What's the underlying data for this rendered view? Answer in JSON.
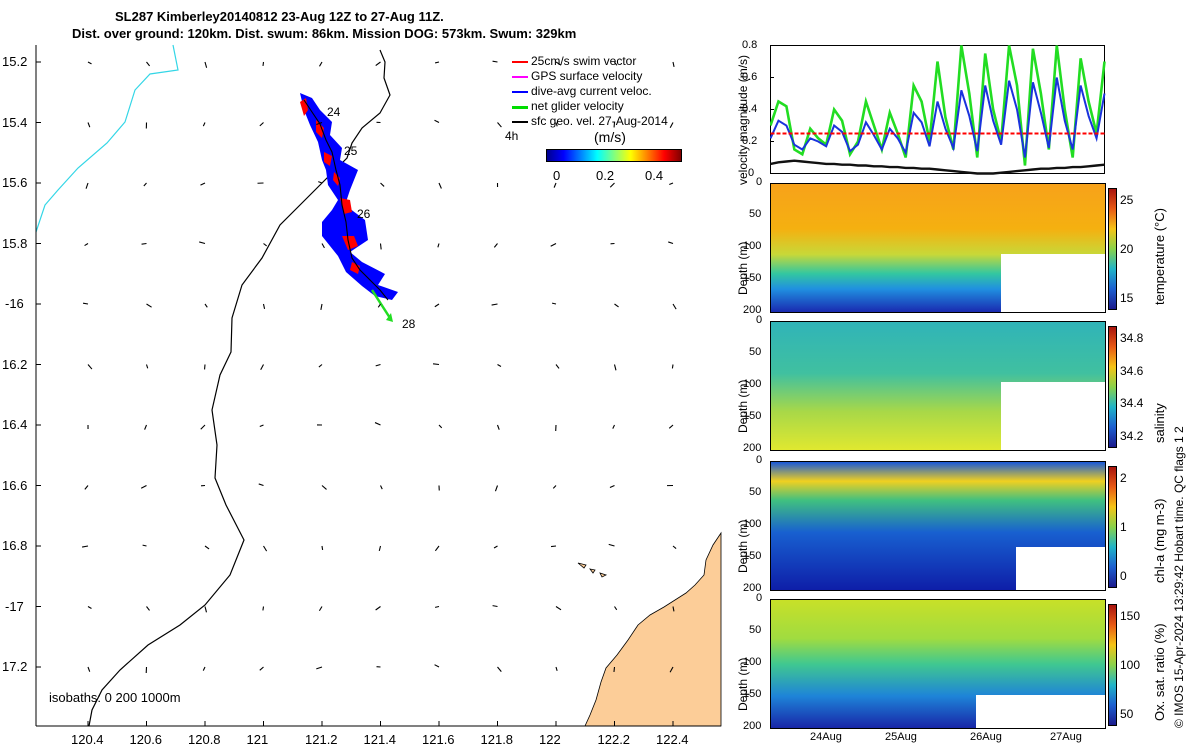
{
  "title": {
    "line1": "SL287 Kimberley20140812 23-Aug 12Z to 27-Aug 11Z.",
    "line2": "Dist. over ground: 120km. Dist. swum: 86km. Mission DOG: 573km. Swum: 329km"
  },
  "map": {
    "lat_ticks": [
      "15.2",
      "15.4",
      "15.6",
      "15.8",
      "-16",
      "16.2",
      "16.4",
      "16.6",
      "16.8",
      "-17",
      "17.2"
    ],
    "lon_ticks": [
      "120.4",
      "120.6",
      "120.8",
      "121",
      "121.2",
      "121.4",
      "121.6",
      "121.8",
      "122",
      "122.2",
      "122.4"
    ],
    "day_labels": [
      "24",
      "25",
      "26",
      "28"
    ],
    "time_label": "4h",
    "isobaths_label": "isobaths: 0   200  1000m",
    "legend": [
      {
        "label": "25cm/s swim vector",
        "color": "#ff0000"
      },
      {
        "label": "GPS surface velocity",
        "color": "#ff00ff"
      },
      {
        "label": "dive-avg current veloc.",
        "color": "#0000ff"
      },
      {
        "label": "net glider velocity",
        "color": "#00dd00"
      },
      {
        "label": "sfc geo. vel. 27-Aug-2014",
        "color": "#000000"
      }
    ],
    "colorbar": {
      "label": "(m/s)",
      "ticks": [
        "0",
        "0.2",
        "0.4"
      ]
    }
  },
  "chart_data": [
    {
      "type": "line",
      "title": "",
      "ylabel": "velocity magnitude (m/s)",
      "ylim": [
        0,
        0.8
      ],
      "yticks": [
        "0",
        "0.2",
        "0.4",
        "0.6",
        "0.8"
      ],
      "series": [
        {
          "name": "net glider velocity",
          "color": "#22dd22",
          "values": [
            0.3,
            0.45,
            0.42,
            0.15,
            0.12,
            0.28,
            0.22,
            0.18,
            0.4,
            0.33,
            0.12,
            0.2,
            0.45,
            0.3,
            0.15,
            0.38,
            0.25,
            0.1,
            0.55,
            0.45,
            0.2,
            0.7,
            0.35,
            0.15,
            0.8,
            0.5,
            0.1,
            0.75,
            0.4,
            0.2,
            0.8,
            0.55,
            0.05,
            0.78,
            0.5,
            0.15,
            0.8,
            0.4,
            0.1,
            0.72,
            0.45,
            0.25,
            0.7
          ]
        },
        {
          "name": "dive-avg current veloc.",
          "color": "#1a33dd",
          "values": [
            0.22,
            0.33,
            0.3,
            0.18,
            0.15,
            0.22,
            0.2,
            0.17,
            0.3,
            0.26,
            0.14,
            0.18,
            0.32,
            0.24,
            0.15,
            0.28,
            0.22,
            0.13,
            0.38,
            0.32,
            0.17,
            0.45,
            0.28,
            0.16,
            0.52,
            0.36,
            0.14,
            0.55,
            0.33,
            0.18,
            0.58,
            0.4,
            0.1,
            0.57,
            0.38,
            0.16,
            0.6,
            0.33,
            0.15,
            0.55,
            0.36,
            0.22,
            0.5
          ]
        },
        {
          "name": "25cm/s swim vector",
          "color": "#ff0000",
          "values": [
            0.25,
            0.25,
            0.25,
            0.25,
            0.25,
            0.25,
            0.25,
            0.25,
            0.25,
            0.25,
            0.25,
            0.25,
            0.25,
            0.25,
            0.25,
            0.25,
            0.25,
            0.25,
            0.25,
            0.25,
            0.25,
            0.25,
            0.25,
            0.25,
            0.25,
            0.25,
            0.25,
            0.25,
            0.25,
            0.25,
            0.25,
            0.25,
            0.25,
            0.25,
            0.25,
            0.25,
            0.25,
            0.25,
            0.25,
            0.25,
            0.25,
            0.25,
            0.25
          ]
        },
        {
          "name": "sfc geo. vel.",
          "color": "#111111",
          "values": [
            0.06,
            0.07,
            0.075,
            0.08,
            0.075,
            0.07,
            0.065,
            0.06,
            0.06,
            0.055,
            0.055,
            0.05,
            0.05,
            0.045,
            0.045,
            0.04,
            0.04,
            0.035,
            0.035,
            0.03,
            0.03,
            0.025,
            0.02,
            0.015,
            0.01,
            0.005,
            0.0,
            0.0,
            0.0,
            0.005,
            0.01,
            0.015,
            0.02,
            0.025,
            0.03,
            0.03,
            0.035,
            0.035,
            0.04,
            0.04,
            0.045,
            0.05,
            0.055
          ]
        }
      ]
    },
    {
      "type": "heatmap",
      "ylabel": "Depth (m)",
      "yticks": [
        "0",
        "50",
        "100",
        "150",
        "200"
      ],
      "colorbar_label": "temperature (°C)",
      "colorbar_ticks": [
        "15",
        "20",
        "25"
      ]
    },
    {
      "type": "heatmap",
      "ylabel": "Depth (m)",
      "yticks": [
        "0",
        "50",
        "100",
        "150",
        "200"
      ],
      "colorbar_label": "salinity",
      "colorbar_ticks": [
        "34.2",
        "34.4",
        "34.6",
        "34.8"
      ]
    },
    {
      "type": "heatmap",
      "ylabel": "Depth (m)",
      "yticks": [
        "0",
        "50",
        "100",
        "150",
        "200"
      ],
      "colorbar_label": "chl-a (mg m-3)",
      "colorbar_ticks": [
        "0",
        "1",
        "2"
      ]
    },
    {
      "type": "heatmap",
      "ylabel": "Depth (m)",
      "yticks": [
        "0",
        "50",
        "100",
        "150",
        "200"
      ],
      "colorbar_label": "Ox. sat. ratio (%)",
      "colorbar_ticks": [
        "50",
        "100",
        "150"
      ]
    }
  ],
  "time_axis": {
    "ticks": [
      "24Aug",
      "25Aug",
      "26Aug",
      "27Aug"
    ]
  },
  "footer": "© IMOS 15-Apr-2024 13:29:42 Hobart time. QC flags 1  2",
  "colors": {
    "land": "#fccd98",
    "track": "#0000ff",
    "swim": "#ff0000",
    "coast": "#33d6e6"
  }
}
